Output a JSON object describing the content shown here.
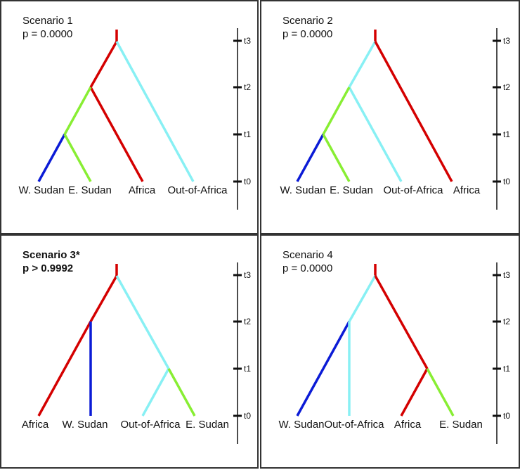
{
  "colors": {
    "red": "#d40000",
    "cyan": "#88f0f4",
    "green": "#88ee33",
    "blue": "#0b1bd6",
    "axis": "#111111",
    "border": "#333333"
  },
  "axis_ticks": [
    "t3",
    "t2",
    "t1",
    "t0"
  ],
  "panels": [
    {
      "name": "Scenario 1",
      "title": "Scenario 1",
      "pvalue": "p = 0.0000",
      "bold": false,
      "tips": [
        "W. Sudan",
        "E. Sudan",
        "Africa",
        "Out-of-Africa"
      ],
      "tree": "((((W. Sudan, E. Sudan), Africa), Out-of-Africa))"
    },
    {
      "name": "Scenario 2",
      "title": "Scenario 2",
      "pvalue": "p = 0.0000",
      "bold": false,
      "tips": [
        "W. Sudan",
        "E. Sudan",
        "Out-of-Africa",
        "Africa"
      ],
      "tree": "((((W. Sudan, E. Sudan), Out-of-Africa), Africa))"
    },
    {
      "name": "Scenario 3*",
      "title": "Scenario 3*",
      "pvalue": "p > 0.9992",
      "bold": true,
      "tips": [
        "Africa",
        "W. Sudan",
        "Out-of-Africa",
        "E. Sudan"
      ],
      "tree": "((Africa, W. Sudan), (Out-of-Africa, E. Sudan))"
    },
    {
      "name": "Scenario 4",
      "title": "Scenario 4",
      "pvalue": "p = 0.0000",
      "bold": false,
      "tips": [
        "W. Sudan",
        "Out-of-Africa",
        "Africa",
        "E. Sudan"
      ],
      "tree": "((W. Sudan, Out-of-Africa), (Africa, E. Sudan))"
    }
  ]
}
